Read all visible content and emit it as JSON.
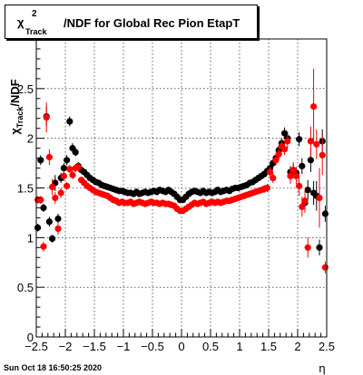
{
  "title": {
    "symbol": "χ",
    "sup": "2",
    "sub": "Track",
    "text": "/NDF for Global Rec Pion EtapT"
  },
  "datestamp": "Sun Oct 18 16:50:25 2020",
  "colors": {
    "series_black": "#000000",
    "series_red": "#ff0000",
    "grid": "#000000",
    "frame": "#000000"
  },
  "chart_data": {
    "type": "scatter",
    "title": "χ²Track/NDF for Global Rec Pion EtapT",
    "xlabel": "η",
    "ylabel": "χ²Track/NDF",
    "xlim": [
      -2.5,
      2.5
    ],
    "ylim": [
      0,
      3.0
    ],
    "grid": true,
    "legend": "none",
    "x_ticks": [
      -2.5,
      -2,
      -1.5,
      -1,
      -0.5,
      0,
      0.5,
      1,
      1.5,
      2,
      2.5
    ],
    "x_tick_labels": [
      "−2.5",
      "−2",
      "−1.5",
      "−1",
      "−0.5",
      "0",
      "0.5",
      "1",
      "1.5",
      "2",
      "2.5"
    ],
    "y_ticks": [
      0,
      0.5,
      1,
      1.5,
      2,
      2.5
    ],
    "y_tick_labels": [
      "0",
      "0.5",
      "1",
      "1.5",
      "2",
      "2.5"
    ],
    "series": [
      {
        "color": "#000000",
        "points": [
          [
            -2.475,
            1.1,
            0.04
          ],
          [
            -2.425,
            1.78,
            0.05
          ],
          [
            -2.375,
            1.3,
            0.04
          ],
          [
            -2.325,
            2.22,
            0.1
          ],
          [
            -2.275,
            1.16,
            0.05
          ],
          [
            -2.225,
            0.99,
            0.04
          ],
          [
            -2.175,
            1.55,
            0.08
          ],
          [
            -2.125,
            1.19,
            0.05
          ],
          [
            -2.075,
            1.6,
            0.05
          ],
          [
            -2.025,
            1.7,
            0.05
          ],
          [
            -1.975,
            1.78,
            0.05
          ],
          [
            -1.925,
            2.17,
            0.05
          ],
          [
            -1.875,
            1.9,
            0.05
          ],
          [
            -1.825,
            1.86,
            0.04
          ],
          [
            -1.775,
            1.72,
            0.04
          ],
          [
            -1.725,
            1.68,
            0.03
          ],
          [
            -1.675,
            1.66,
            0.03
          ],
          [
            -1.625,
            1.63,
            0.03
          ],
          [
            -1.575,
            1.6,
            0.03
          ],
          [
            -1.525,
            1.58,
            0.03
          ],
          [
            -1.475,
            1.56,
            0.03
          ],
          [
            -1.425,
            1.55,
            0.03
          ],
          [
            -1.375,
            1.53,
            0.03
          ],
          [
            -1.325,
            1.52,
            0.03
          ],
          [
            -1.275,
            1.51,
            0.03
          ],
          [
            -1.225,
            1.5,
            0.03
          ],
          [
            -1.175,
            1.49,
            0.03
          ],
          [
            -1.125,
            1.48,
            0.03
          ],
          [
            -1.075,
            1.47,
            0.03
          ],
          [
            -1.025,
            1.47,
            0.03
          ],
          [
            -0.975,
            1.46,
            0.03
          ],
          [
            -0.925,
            1.45,
            0.03
          ],
          [
            -0.875,
            1.45,
            0.03
          ],
          [
            -0.825,
            1.44,
            0.03
          ],
          [
            -0.775,
            1.46,
            0.03
          ],
          [
            -0.725,
            1.44,
            0.03
          ],
          [
            -0.675,
            1.45,
            0.03
          ],
          [
            -0.625,
            1.46,
            0.03
          ],
          [
            -0.575,
            1.45,
            0.03
          ],
          [
            -0.525,
            1.46,
            0.03
          ],
          [
            -0.475,
            1.47,
            0.03
          ],
          [
            -0.425,
            1.46,
            0.03
          ],
          [
            -0.375,
            1.48,
            0.03
          ],
          [
            -0.325,
            1.47,
            0.03
          ],
          [
            -0.275,
            1.46,
            0.03
          ],
          [
            -0.225,
            1.48,
            0.03
          ],
          [
            -0.175,
            1.46,
            0.03
          ],
          [
            -0.125,
            1.44,
            0.03
          ],
          [
            -0.075,
            1.41,
            0.03
          ],
          [
            -0.025,
            1.38,
            0.03
          ],
          [
            0.025,
            1.38,
            0.03
          ],
          [
            0.075,
            1.41,
            0.03
          ],
          [
            0.125,
            1.44,
            0.03
          ],
          [
            0.175,
            1.46,
            0.03
          ],
          [
            0.225,
            1.47,
            0.03
          ],
          [
            0.275,
            1.46,
            0.03
          ],
          [
            0.325,
            1.45,
            0.03
          ],
          [
            0.375,
            1.47,
            0.03
          ],
          [
            0.425,
            1.45,
            0.03
          ],
          [
            0.475,
            1.46,
            0.03
          ],
          [
            0.525,
            1.45,
            0.03
          ],
          [
            0.575,
            1.46,
            0.03
          ],
          [
            0.625,
            1.48,
            0.03
          ],
          [
            0.675,
            1.46,
            0.03
          ],
          [
            0.725,
            1.47,
            0.03
          ],
          [
            0.775,
            1.48,
            0.03
          ],
          [
            0.825,
            1.47,
            0.03
          ],
          [
            0.875,
            1.49,
            0.03
          ],
          [
            0.925,
            1.5,
            0.03
          ],
          [
            0.975,
            1.5,
            0.03
          ],
          [
            1.025,
            1.51,
            0.03
          ],
          [
            1.075,
            1.52,
            0.03
          ],
          [
            1.125,
            1.53,
            0.03
          ],
          [
            1.175,
            1.55,
            0.03
          ],
          [
            1.225,
            1.56,
            0.03
          ],
          [
            1.275,
            1.58,
            0.03
          ],
          [
            1.325,
            1.6,
            0.03
          ],
          [
            1.375,
            1.62,
            0.03
          ],
          [
            1.425,
            1.64,
            0.03
          ],
          [
            1.475,
            1.67,
            0.03
          ],
          [
            1.525,
            1.7,
            0.04
          ],
          [
            1.575,
            1.75,
            0.04
          ],
          [
            1.625,
            1.8,
            0.05
          ],
          [
            1.675,
            1.88,
            0.05
          ],
          [
            1.725,
            1.95,
            0.05
          ],
          [
            1.775,
            2.05,
            0.06
          ],
          [
            1.825,
            2.0,
            0.06
          ],
          [
            1.875,
            1.66,
            0.06
          ],
          [
            1.925,
            1.68,
            0.06
          ],
          [
            1.975,
            1.65,
            0.06
          ],
          [
            2.025,
            1.99,
            0.07
          ],
          [
            2.075,
            1.72,
            0.08
          ],
          [
            2.125,
            1.35,
            0.08
          ],
          [
            2.175,
            1.48,
            0.1
          ],
          [
            2.225,
            1.78,
            0.12
          ],
          [
            2.275,
            1.45,
            0.12
          ],
          [
            2.325,
            1.42,
            0.15
          ],
          [
            2.375,
            0.9,
            0.08
          ],
          [
            2.425,
            1.97,
            0.12
          ],
          [
            2.475,
            1.24,
            0.08
          ]
        ]
      },
      {
        "color": "#ff0000",
        "points": [
          [
            -2.475,
            1.38,
            0.04
          ],
          [
            -2.425,
            1.38,
            0.04
          ],
          [
            -2.375,
            0.91,
            0.05
          ],
          [
            -2.325,
            2.21,
            0.15
          ],
          [
            -2.275,
            1.81,
            0.08
          ],
          [
            -2.225,
            1.51,
            0.08
          ],
          [
            -2.175,
            1.4,
            0.06
          ],
          [
            -2.125,
            1.09,
            0.06
          ],
          [
            -2.075,
            1.45,
            0.05
          ],
          [
            -2.025,
            1.62,
            0.05
          ],
          [
            -1.975,
            1.52,
            0.04
          ],
          [
            -1.925,
            1.69,
            0.04
          ],
          [
            -1.875,
            1.63,
            0.04
          ],
          [
            -1.825,
            1.7,
            0.04
          ],
          [
            -1.775,
            1.71,
            0.04
          ],
          [
            -1.725,
            1.58,
            0.03
          ],
          [
            -1.675,
            1.55,
            0.03
          ],
          [
            -1.625,
            1.52,
            0.03
          ],
          [
            -1.575,
            1.5,
            0.03
          ],
          [
            -1.525,
            1.48,
            0.03
          ],
          [
            -1.475,
            1.46,
            0.03
          ],
          [
            -1.425,
            1.45,
            0.03
          ],
          [
            -1.375,
            1.44,
            0.03
          ],
          [
            -1.325,
            1.43,
            0.03
          ],
          [
            -1.275,
            1.42,
            0.03
          ],
          [
            -1.225,
            1.4,
            0.03
          ],
          [
            -1.175,
            1.38,
            0.03
          ],
          [
            -1.125,
            1.37,
            0.03
          ],
          [
            -1.075,
            1.35,
            0.03
          ],
          [
            -1.025,
            1.36,
            0.03
          ],
          [
            -0.975,
            1.35,
            0.03
          ],
          [
            -0.925,
            1.35,
            0.03
          ],
          [
            -0.875,
            1.36,
            0.03
          ],
          [
            -0.825,
            1.34,
            0.03
          ],
          [
            -0.775,
            1.35,
            0.03
          ],
          [
            -0.725,
            1.36,
            0.03
          ],
          [
            -0.675,
            1.35,
            0.03
          ],
          [
            -0.625,
            1.34,
            0.03
          ],
          [
            -0.575,
            1.35,
            0.03
          ],
          [
            -0.525,
            1.36,
            0.03
          ],
          [
            -0.475,
            1.35,
            0.03
          ],
          [
            -0.425,
            1.35,
            0.03
          ],
          [
            -0.375,
            1.34,
            0.03
          ],
          [
            -0.325,
            1.35,
            0.03
          ],
          [
            -0.275,
            1.34,
            0.03
          ],
          [
            -0.225,
            1.34,
            0.03
          ],
          [
            -0.175,
            1.33,
            0.03
          ],
          [
            -0.125,
            1.32,
            0.03
          ],
          [
            -0.075,
            1.29,
            0.03
          ],
          [
            -0.025,
            1.27,
            0.03
          ],
          [
            0.025,
            1.27,
            0.03
          ],
          [
            0.075,
            1.29,
            0.03
          ],
          [
            0.125,
            1.31,
            0.03
          ],
          [
            0.175,
            1.33,
            0.03
          ],
          [
            0.225,
            1.35,
            0.03
          ],
          [
            0.275,
            1.34,
            0.03
          ],
          [
            0.325,
            1.35,
            0.03
          ],
          [
            0.375,
            1.36,
            0.03
          ],
          [
            0.425,
            1.34,
            0.03
          ],
          [
            0.475,
            1.35,
            0.03
          ],
          [
            0.525,
            1.36,
            0.03
          ],
          [
            0.575,
            1.35,
            0.03
          ],
          [
            0.625,
            1.36,
            0.03
          ],
          [
            0.675,
            1.35,
            0.03
          ],
          [
            0.725,
            1.36,
            0.03
          ],
          [
            0.775,
            1.37,
            0.03
          ],
          [
            0.825,
            1.37,
            0.03
          ],
          [
            0.875,
            1.38,
            0.03
          ],
          [
            0.925,
            1.39,
            0.03
          ],
          [
            0.975,
            1.4,
            0.03
          ],
          [
            1.025,
            1.41,
            0.03
          ],
          [
            1.075,
            1.42,
            0.03
          ],
          [
            1.125,
            1.43,
            0.03
          ],
          [
            1.175,
            1.44,
            0.03
          ],
          [
            1.225,
            1.45,
            0.03
          ],
          [
            1.275,
            1.46,
            0.03
          ],
          [
            1.325,
            1.47,
            0.03
          ],
          [
            1.375,
            1.48,
            0.03
          ],
          [
            1.425,
            1.49,
            0.04
          ],
          [
            1.475,
            1.5,
            0.04
          ],
          [
            1.525,
            1.66,
            0.05
          ],
          [
            1.575,
            1.6,
            0.05
          ],
          [
            1.625,
            1.78,
            0.05
          ],
          [
            1.675,
            1.84,
            0.06
          ],
          [
            1.725,
            1.92,
            0.06
          ],
          [
            1.775,
            1.89,
            0.06
          ],
          [
            1.825,
            1.97,
            0.07
          ],
          [
            1.875,
            1.62,
            0.08
          ],
          [
            1.925,
            1.68,
            0.08
          ],
          [
            1.975,
            1.62,
            0.08
          ],
          [
            2.025,
            1.52,
            0.1
          ],
          [
            2.075,
            1.31,
            0.1
          ],
          [
            2.125,
            1.37,
            0.12
          ],
          [
            2.175,
            0.9,
            0.1
          ],
          [
            2.225,
            1.97,
            0.15
          ],
          [
            2.275,
            2.32,
            0.38
          ],
          [
            2.325,
            1.94,
            0.15
          ],
          [
            2.375,
            1.4,
            0.3
          ],
          [
            2.425,
            1.83,
            0.2
          ],
          [
            2.475,
            0.7,
            0.06
          ]
        ]
      }
    ]
  }
}
